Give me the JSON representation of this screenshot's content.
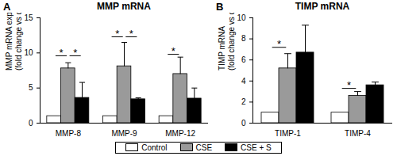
{
  "chart_data": [
    {
      "type": "bar",
      "panel": "A",
      "title": "MMP mRNA",
      "ylabel": "MMP mRNA expression\n(fold change vs control)",
      "categories": [
        "MMP-8",
        "MMP-9",
        "MMP-12"
      ],
      "series": [
        {
          "name": "Control",
          "color": "#ffffff",
          "values": [
            1,
            1,
            1
          ],
          "errors": [
            0,
            0,
            0
          ]
        },
        {
          "name": "CSE",
          "color": "#9a9a9a",
          "values": [
            7.8,
            8.1,
            7.0
          ],
          "errors": [
            0.8,
            3.4,
            2.4
          ]
        },
        {
          "name": "CSE + S",
          "color": "#000000",
          "values": [
            3.6,
            3.4,
            3.5
          ],
          "errors": [
            2.2,
            0.2,
            1.5
          ]
        }
      ],
      "ylim": [
        0,
        15
      ],
      "yticks": [
        0,
        5,
        10,
        15
      ],
      "legend": "bottom",
      "annotations": [
        {
          "text": "*",
          "category": "MMP-8",
          "from": "Control",
          "to": "CSE",
          "y": 9.6
        },
        {
          "text": "*",
          "category": "MMP-8",
          "from": "CSE",
          "to": "CSE + S",
          "y": 9.6
        },
        {
          "text": "*",
          "category": "MMP-9",
          "from": "Control",
          "to": "CSE",
          "y": 12.3
        },
        {
          "text": "*",
          "category": "MMP-9",
          "from": "CSE",
          "to": "CSE + S",
          "y": 12.3
        },
        {
          "text": "*",
          "category": "MMP-12",
          "from": "Control",
          "to": "CSE",
          "y": 9.8
        }
      ]
    },
    {
      "type": "bar",
      "panel": "B",
      "title": "TIMP mRNA",
      "ylabel": "TIMP mRNA\n(fold change vs control)",
      "categories": [
        "TIMP-1",
        "TIMP-4"
      ],
      "series": [
        {
          "name": "Control",
          "color": "#ffffff",
          "values": [
            1,
            1
          ],
          "errors": [
            0,
            0
          ]
        },
        {
          "name": "CSE",
          "color": "#9a9a9a",
          "values": [
            5.2,
            2.6
          ],
          "errors": [
            1.4,
            0.4
          ]
        },
        {
          "name": "CSE + S",
          "color": "#000000",
          "values": [
            6.7,
            3.6
          ],
          "errors": [
            2.6,
            0.3
          ]
        }
      ],
      "ylim": [
        0,
        10
      ],
      "yticks": [
        0,
        2,
        4,
        6,
        8,
        10
      ],
      "annotations": [
        {
          "text": "*",
          "category": "TIMP-1",
          "from": "Control",
          "to": "CSE",
          "y": 7.2
        },
        {
          "text": "*",
          "category": "TIMP-4",
          "from": "Control",
          "to": "CSE",
          "y": 3.3
        }
      ]
    }
  ]
}
